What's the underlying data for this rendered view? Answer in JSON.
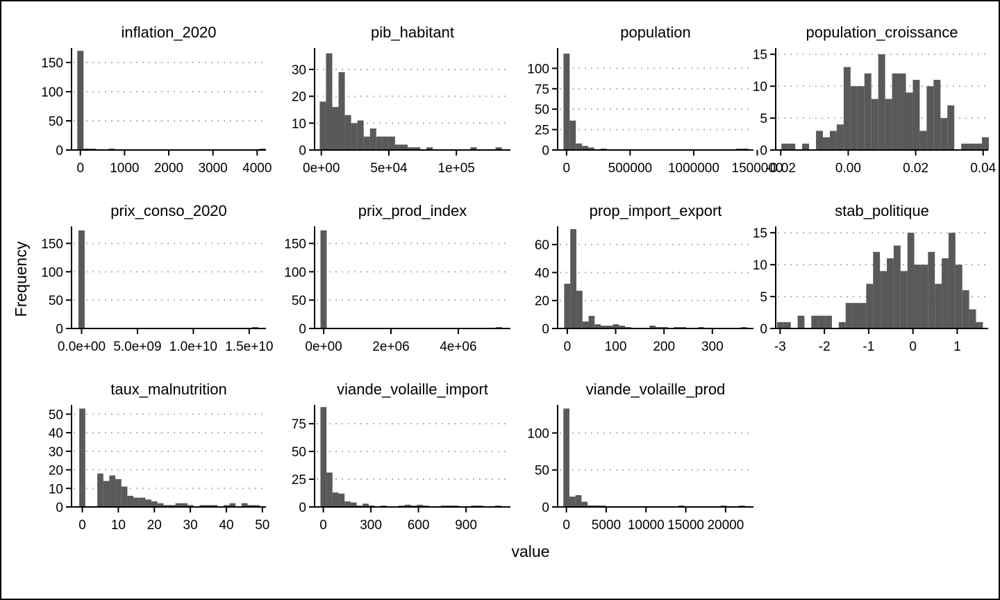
{
  "colors": {
    "bar": "#595959",
    "grid": "#b0b0b0",
    "axis": "#000000",
    "background": "#ffffff"
  },
  "xlabel": "value",
  "ylabel": "Frequency",
  "chart_data": [
    {
      "type": "bar",
      "title": "inflation_2020",
      "bins": 30,
      "xlim": [
        -200,
        4200
      ],
      "ylim": [
        0,
        175
      ],
      "xticks": [
        0,
        1000,
        2000,
        3000,
        4000
      ],
      "xtick_labels": [
        "0",
        "1000",
        "2000",
        "3000",
        "4000"
      ],
      "yticks": [
        0,
        50,
        100,
        150
      ],
      "ytick_labels": [
        "0",
        "50",
        "100",
        "150"
      ],
      "bin_start": -70,
      "bin_width": 142,
      "counts": [
        170,
        1,
        1,
        0,
        0,
        1,
        0,
        0,
        0,
        0,
        0,
        0,
        0,
        0,
        0,
        0,
        0,
        0,
        0,
        0,
        0,
        0,
        0,
        0,
        0,
        0,
        0,
        0,
        0,
        1
      ]
    },
    {
      "type": "bar",
      "title": "pib_habitant",
      "bins": 30,
      "xlim": [
        -5000,
        140000
      ],
      "ylim": [
        0,
        38
      ],
      "xticks": [
        0,
        50000,
        100000
      ],
      "xtick_labels": [
        "0e+00",
        "5e+04",
        "1e+05"
      ],
      "yticks": [
        0,
        10,
        20,
        30
      ],
      "ytick_labels": [
        "0",
        "10",
        "20",
        "30"
      ],
      "bin_start": -1200,
      "bin_width": 4650,
      "counts": [
        18,
        36,
        16,
        29,
        13,
        10,
        11,
        5,
        8,
        5,
        5,
        5,
        2,
        2,
        1,
        1,
        0,
        1,
        0,
        0,
        0,
        0,
        0,
        0,
        1,
        0,
        0,
        0,
        1,
        0
      ]
    },
    {
      "type": "bar",
      "title": "population",
      "bins": 30,
      "xlim": [
        -70000,
        1470000
      ],
      "ylim": [
        0,
        125
      ],
      "xticks": [
        0,
        500000,
        1000000,
        1500000
      ],
      "xtick_labels": [
        "0",
        "500000",
        "1000000",
        "1500000"
      ],
      "yticks": [
        0,
        25,
        50,
        75,
        100
      ],
      "ytick_labels": [
        "0",
        "25",
        "50",
        "75",
        "100"
      ],
      "bin_start": -24000,
      "bin_width": 48500,
      "counts": [
        118,
        36,
        8,
        5,
        3,
        0,
        1,
        0,
        0,
        0,
        0,
        0,
        0,
        0,
        0,
        0,
        0,
        0,
        0,
        0,
        0,
        0,
        0,
        0,
        0,
        0,
        0,
        0,
        1,
        1
      ]
    },
    {
      "type": "bar",
      "title": "population_croissance",
      "bins": 30,
      "xlim": [
        -0.0215,
        0.0415
      ],
      "ylim": [
        0,
        16
      ],
      "xticks": [
        -0.02,
        0,
        0.02,
        0.04
      ],
      "xtick_labels": [
        "-0.02",
        "0.00",
        "0.02",
        "0.04"
      ],
      "yticks": [
        0,
        5,
        10,
        15
      ],
      "ytick_labels": [
        "0",
        "5",
        "10",
        "15"
      ],
      "bin_start": -0.0198,
      "bin_width": 0.00205,
      "counts": [
        1,
        1,
        0,
        1,
        0,
        3,
        2,
        3,
        4,
        13,
        10,
        10,
        12,
        8,
        15,
        8,
        12,
        12,
        9,
        11,
        3,
        10,
        11,
        5,
        7,
        0,
        1,
        1,
        1,
        2
      ]
    },
    {
      "type": "bar",
      "title": "prix_conso_2020",
      "bins": 30,
      "xlim": [
        -900000000.0,
        16500000000.0
      ],
      "ylim": [
        0,
        180
      ],
      "xticks": [
        0,
        5000000000.0,
        10000000000.0,
        15000000000.0
      ],
      "xtick_labels": [
        "0.0e+00",
        "5.0e+09",
        "1.0e+10",
        "1.5e+10"
      ],
      "yticks": [
        0,
        50,
        100,
        150
      ],
      "ytick_labels": [
        "0",
        "50",
        "100",
        "150"
      ],
      "bin_start": -280000000.0,
      "bin_width": 555000000.0,
      "counts": [
        173,
        0,
        0,
        0,
        0,
        0,
        0,
        0,
        0,
        0,
        0,
        0,
        0,
        0,
        0,
        0,
        0,
        0,
        0,
        0,
        0,
        0,
        0,
        0,
        0,
        0,
        0,
        0,
        1,
        0
      ]
    },
    {
      "type": "bar",
      "title": "prix_prod_index",
      "bins": 30,
      "xlim": [
        -270000,
        5550000
      ],
      "ylim": [
        0,
        180
      ],
      "xticks": [
        0,
        2000000,
        4000000
      ],
      "xtick_labels": [
        "0e+00",
        "2e+06",
        "4e+06"
      ],
      "yticks": [
        0,
        50,
        100,
        150
      ],
      "ytick_labels": [
        "0",
        "50",
        "100",
        "150"
      ],
      "bin_start": -95000,
      "bin_width": 186000,
      "counts": [
        173,
        0,
        0,
        0,
        0,
        0,
        0,
        0,
        0,
        0,
        0,
        0,
        0,
        0,
        0,
        0,
        0,
        0,
        0,
        0,
        0,
        0,
        0,
        0,
        0,
        0,
        0,
        0,
        1,
        0
      ]
    },
    {
      "type": "bar",
      "title": "prop_import_export",
      "bins": 30,
      "xlim": [
        -20,
        385
      ],
      "ylim": [
        0,
        73
      ],
      "xticks": [
        0,
        100,
        200,
        300
      ],
      "xtick_labels": [
        "0",
        "100",
        "200",
        "300"
      ],
      "yticks": [
        0,
        20,
        40,
        60
      ],
      "ytick_labels": [
        "0",
        "20",
        "40",
        "60"
      ],
      "bin_start": -6.5,
      "bin_width": 12.6,
      "counts": [
        32,
        71,
        27,
        5,
        9,
        3,
        2,
        2,
        3,
        2,
        1,
        0,
        0,
        0,
        2,
        1,
        1,
        0,
        1,
        1,
        0,
        0,
        1,
        0,
        0,
        0,
        0,
        0,
        0,
        1
      ]
    },
    {
      "type": "bar",
      "title": "stab_politique",
      "bins": 30,
      "xlim": [
        -3.1,
        1.7
      ],
      "ylim": [
        0,
        16
      ],
      "xticks": [
        -3,
        -2,
        -1,
        0,
        1
      ],
      "xtick_labels": [
        "-3",
        "-2",
        "-1",
        "0",
        "1"
      ],
      "yticks": [
        0,
        5,
        10,
        15
      ],
      "ytick_labels": [
        "0",
        "5",
        "10",
        "15"
      ],
      "bin_start": -3.07,
      "bin_width": 0.155,
      "counts": [
        1,
        1,
        0,
        2,
        0,
        2,
        2,
        2,
        0,
        1,
        4,
        4,
        4,
        7,
        12,
        9,
        11,
        13,
        9,
        15,
        10,
        10,
        12,
        7,
        11,
        15,
        10,
        6,
        3,
        1
      ]
    },
    {
      "type": "bar",
      "title": "taux_malnutrition",
      "bins": 30,
      "xlim": [
        -3,
        51
      ],
      "ylim": [
        0,
        55
      ],
      "xticks": [
        0,
        10,
        20,
        30,
        40,
        50
      ],
      "xtick_labels": [
        "0",
        "10",
        "20",
        "30",
        "40",
        "50"
      ],
      "yticks": [
        0,
        10,
        20,
        30,
        40,
        50
      ],
      "ytick_labels": [
        "0",
        "10",
        "20",
        "30",
        "40",
        "50"
      ],
      "bin_start": -0.85,
      "bin_width": 1.67,
      "counts": [
        53,
        0,
        0,
        18,
        14,
        17,
        15,
        11,
        6,
        5,
        5,
        4,
        3,
        2,
        1,
        1,
        2,
        2,
        1,
        0,
        1,
        1,
        1,
        0,
        1,
        2,
        0,
        2,
        1,
        1
      ]
    },
    {
      "type": "bar",
      "title": "viande_volaille_import",
      "bins": 30,
      "xlim": [
        -55,
        1180
      ],
      "ylim": [
        0,
        92
      ],
      "xticks": [
        0,
        300,
        600,
        900
      ],
      "xtick_labels": [
        "0",
        "300",
        "600",
        "900"
      ],
      "yticks": [
        0,
        25,
        50,
        75
      ],
      "ytick_labels": [
        "0",
        "25",
        "50",
        "75"
      ],
      "bin_start": -18,
      "bin_width": 38,
      "counts": [
        90,
        31,
        13,
        12,
        5,
        4,
        1,
        3,
        1,
        0,
        1,
        0,
        0,
        1,
        2,
        1,
        2,
        1,
        0,
        0,
        1,
        1,
        1,
        0,
        0,
        1,
        1,
        0,
        0,
        1
      ]
    },
    {
      "type": "bar",
      "title": "viande_volaille_prod",
      "bins": 30,
      "xlim": [
        -1100,
        23500
      ],
      "ylim": [
        0,
        138
      ],
      "xticks": [
        0,
        5000,
        10000,
        15000,
        20000
      ],
      "xtick_labels": [
        "0",
        "5000",
        "10000",
        "15000",
        "20000"
      ],
      "yticks": [
        0,
        50,
        100
      ],
      "ytick_labels": [
        "0",
        "50",
        "100"
      ],
      "bin_start": -380,
      "bin_width": 760,
      "counts": [
        133,
        14,
        16,
        7,
        2,
        2,
        1,
        0,
        0,
        0,
        0,
        0,
        0,
        0,
        0,
        0,
        0,
        0,
        0,
        1,
        0,
        0,
        0,
        0,
        0,
        0,
        1,
        0,
        0,
        1
      ]
    }
  ]
}
